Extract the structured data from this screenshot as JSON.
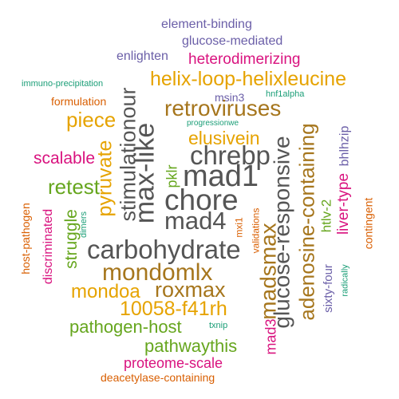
{
  "words": [
    {
      "text": "element-binding",
      "color": "#6b5fa8"
    },
    {
      "text": "glucose-mediated",
      "color": "#6b5fa8"
    },
    {
      "text": "enlighten",
      "color": "#6b5fa8"
    },
    {
      "text": "heterodimerizing",
      "color": "#d9137f"
    },
    {
      "text": "immuno-precipitation",
      "color": "#1b9e77"
    },
    {
      "text": "helix-loop-helixleucine",
      "color": "#e6a300"
    },
    {
      "text": "formulation",
      "color": "#d95f02"
    },
    {
      "text": "msin3",
      "color": "#6b5fa8"
    },
    {
      "text": "hnf1alpha",
      "color": "#1b9e77"
    },
    {
      "text": "retroviruses",
      "color": "#a6761d"
    },
    {
      "text": "piece",
      "color": "#e6a300"
    },
    {
      "text": "progressionwe",
      "color": "#1b9e77"
    },
    {
      "text": "elusivein",
      "color": "#e6a300"
    },
    {
      "text": "chrebp",
      "color": "#555555"
    },
    {
      "text": "stimulationour",
      "color": "#555555"
    },
    {
      "text": "max-like",
      "color": "#555555"
    },
    {
      "text": "glucose-responsive",
      "color": "#555555"
    },
    {
      "text": "adenosine-containing",
      "color": "#a6761d"
    },
    {
      "text": "bhlhzip",
      "color": "#6b5fa8"
    },
    {
      "text": "scalable",
      "color": "#d9137f"
    },
    {
      "text": "pyruvate",
      "color": "#e6a300"
    },
    {
      "text": "pklr",
      "color": "#66a61e"
    },
    {
      "text": "mad1",
      "color": "#555555"
    },
    {
      "text": "retest",
      "color": "#66a61e"
    },
    {
      "text": "chore",
      "color": "#555555"
    },
    {
      "text": "liver-type",
      "color": "#d9137f"
    },
    {
      "text": "htlv-2",
      "color": "#66a61e"
    },
    {
      "text": "host-pathogen",
      "color": "#d95f02"
    },
    {
      "text": "discriminated",
      "color": "#d9137f"
    },
    {
      "text": "struggle",
      "color": "#66a61e"
    },
    {
      "text": "dimers",
      "color": "#1b9e77"
    },
    {
      "text": "mad4",
      "color": "#555555"
    },
    {
      "text": "mxi1",
      "color": "#d95f02"
    },
    {
      "text": "validations",
      "color": "#d95f02"
    },
    {
      "text": "contingent",
      "color": "#d95f02"
    },
    {
      "text": "carbohydrate",
      "color": "#555555"
    },
    {
      "text": "madsmax",
      "color": "#a6761d"
    },
    {
      "text": "mondomlx",
      "color": "#a6761d"
    },
    {
      "text": "sixty-four",
      "color": "#6b5fa8"
    },
    {
      "text": "radically",
      "color": "#1b9e77"
    },
    {
      "text": "mondoa",
      "color": "#e6a300"
    },
    {
      "text": "roxmax",
      "color": "#a6761d"
    },
    {
      "text": "10058-f41rh",
      "color": "#e6a300"
    },
    {
      "text": "mad3",
      "color": "#d9137f"
    },
    {
      "text": "pathogen-host",
      "color": "#66a61e"
    },
    {
      "text": "txnip",
      "color": "#1b9e77"
    },
    {
      "text": "pathwaythis",
      "color": "#66a61e"
    },
    {
      "text": "proteome-scale",
      "color": "#d9137f"
    },
    {
      "text": "deacetylase-containing",
      "color": "#d95f02"
    }
  ]
}
